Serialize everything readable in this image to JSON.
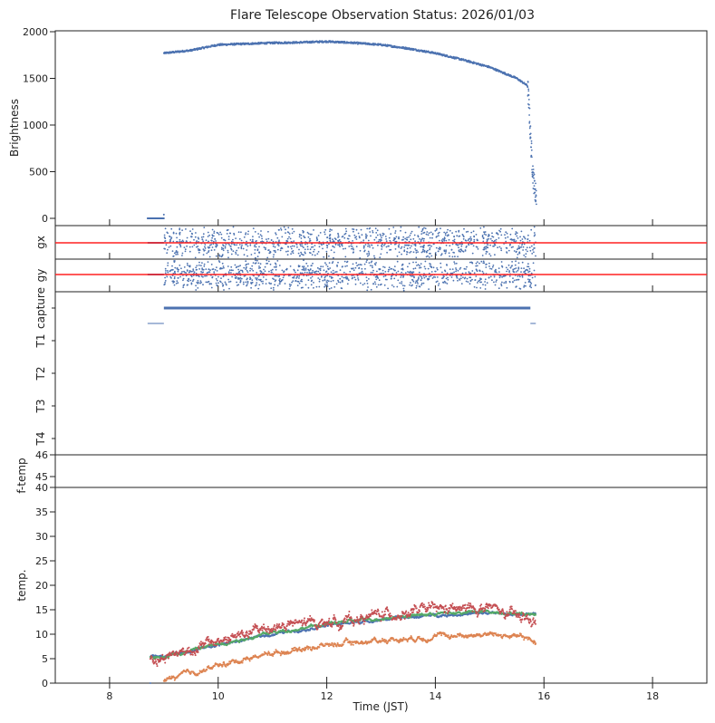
{
  "chart_data": {
    "type": "scatter",
    "title": "Flare Telescope Observation Status: 2026/01/03",
    "xlabel": "Time (JST)",
    "xlim": [
      7,
      19
    ],
    "xticks": [
      "8",
      "10",
      "12",
      "14",
      "16",
      "18"
    ],
    "xtick_values": [
      8,
      10,
      12,
      14,
      16,
      18
    ],
    "panels": [
      {
        "id": "brightness",
        "ylabel": "Brightness",
        "ylim": [
          -78,
          2000
        ],
        "yticks": [
          "0",
          "500",
          "1000",
          "1500",
          "2000"
        ],
        "ytick_values": [
          0,
          500,
          1000,
          1500,
          2000
        ],
        "series": [
          {
            "name": "brightness",
            "color": "#4c72b0",
            "x": [
              8.7,
              8.8,
              8.9,
              8.98,
              9.0,
              9.5,
              10,
              10.5,
              11,
              11.5,
              12,
              12.5,
              13,
              13.5,
              14,
              14.5,
              15,
              15.5,
              15.7,
              15.73,
              15.76,
              15.8,
              15.85
            ],
            "y": [
              0,
              0,
              0,
              0,
              1770,
              1800,
              1860,
              1870,
              1880,
              1885,
              1895,
              1880,
              1860,
              1820,
              1770,
              1700,
              1620,
              1500,
              1420,
              1150,
              800,
              450,
              250
            ]
          }
        ]
      },
      {
        "id": "gx",
        "ylabel": "gx",
        "reference_line": 0,
        "reference_color": "#ff2020",
        "noise_range": [
          -1,
          1
        ],
        "active": [
          9.0,
          15.85
        ],
        "flat": [
          8.7,
          9.0
        ]
      },
      {
        "id": "gy",
        "ylabel": "gy",
        "reference_line": 0,
        "reference_color": "#ff2020",
        "noise_range": [
          -1,
          1
        ],
        "active": [
          9.0,
          15.85
        ],
        "flat": [
          8.7,
          9.0
        ]
      },
      {
        "id": "status",
        "ylabels": [
          "capture",
          "T1",
          "T2",
          "T3",
          "T4"
        ],
        "capture_on": [
          9.0,
          15.75
        ],
        "capture_off": [
          [
            8.7,
            9.0
          ],
          [
            15.75,
            15.85
          ]
        ]
      },
      {
        "id": "f-temp",
        "ylabel": "f-temp",
        "yticks": [
          "46",
          "45"
        ],
        "ytick_values": [
          46,
          45
        ],
        "ylim": [
          44.5,
          46
        ]
      },
      {
        "id": "temp",
        "ylabel": "temp.",
        "ylim": [
          0,
          40
        ],
        "yticks": [
          "0",
          "5",
          "10",
          "15",
          "20",
          "25",
          "30",
          "35",
          "40"
        ],
        "ytick_values": [
          0,
          5,
          10,
          15,
          20,
          25,
          30,
          35,
          40
        ],
        "series": [
          {
            "name": "blue",
            "color": "#4c72b0",
            "x": [
              8.75,
              9,
              10,
              11,
              12,
              13,
              14,
              15,
              15.85
            ],
            "y": [
              5.5,
              5.6,
              7.8,
              10,
              11.8,
              13,
              13.9,
              14.3,
              13.9
            ]
          },
          {
            "name": "green",
            "color": "#55a868",
            "x": [
              8.75,
              9,
              10,
              11,
              12,
              13,
              14,
              15,
              15.85
            ],
            "y": [
              5.3,
              5.5,
              8.0,
              10.3,
              12.1,
              13.3,
              14.2,
              14.6,
              14.1
            ]
          },
          {
            "name": "red",
            "color": "#c44e52",
            "x": [
              8.75,
              9,
              9.5,
              10,
              10.5,
              11,
              11.5,
              12,
              12.5,
              13,
              13.5,
              14,
              14.5,
              15,
              15.3,
              15.85
            ],
            "y": [
              5,
              5.5,
              7,
              8.5,
              10,
              11.5,
              12,
              12.5,
              13,
              14,
              14.5,
              15,
              15,
              15.5,
              14,
              12.5
            ]
          },
          {
            "name": "orange",
            "color": "#dd8452",
            "x": [
              9.0,
              9.5,
              10,
              10.5,
              11,
              11.5,
              12,
              12.5,
              13,
              13.5,
              14,
              14.5,
              15,
              15.5,
              15.85
            ],
            "y": [
              0.5,
              2,
              3.5,
              5,
              6.2,
              7,
              7.8,
              8.3,
              8.8,
              9.2,
              9.6,
              9.8,
              10,
              9.5,
              8.5
            ]
          }
        ]
      }
    ]
  }
}
